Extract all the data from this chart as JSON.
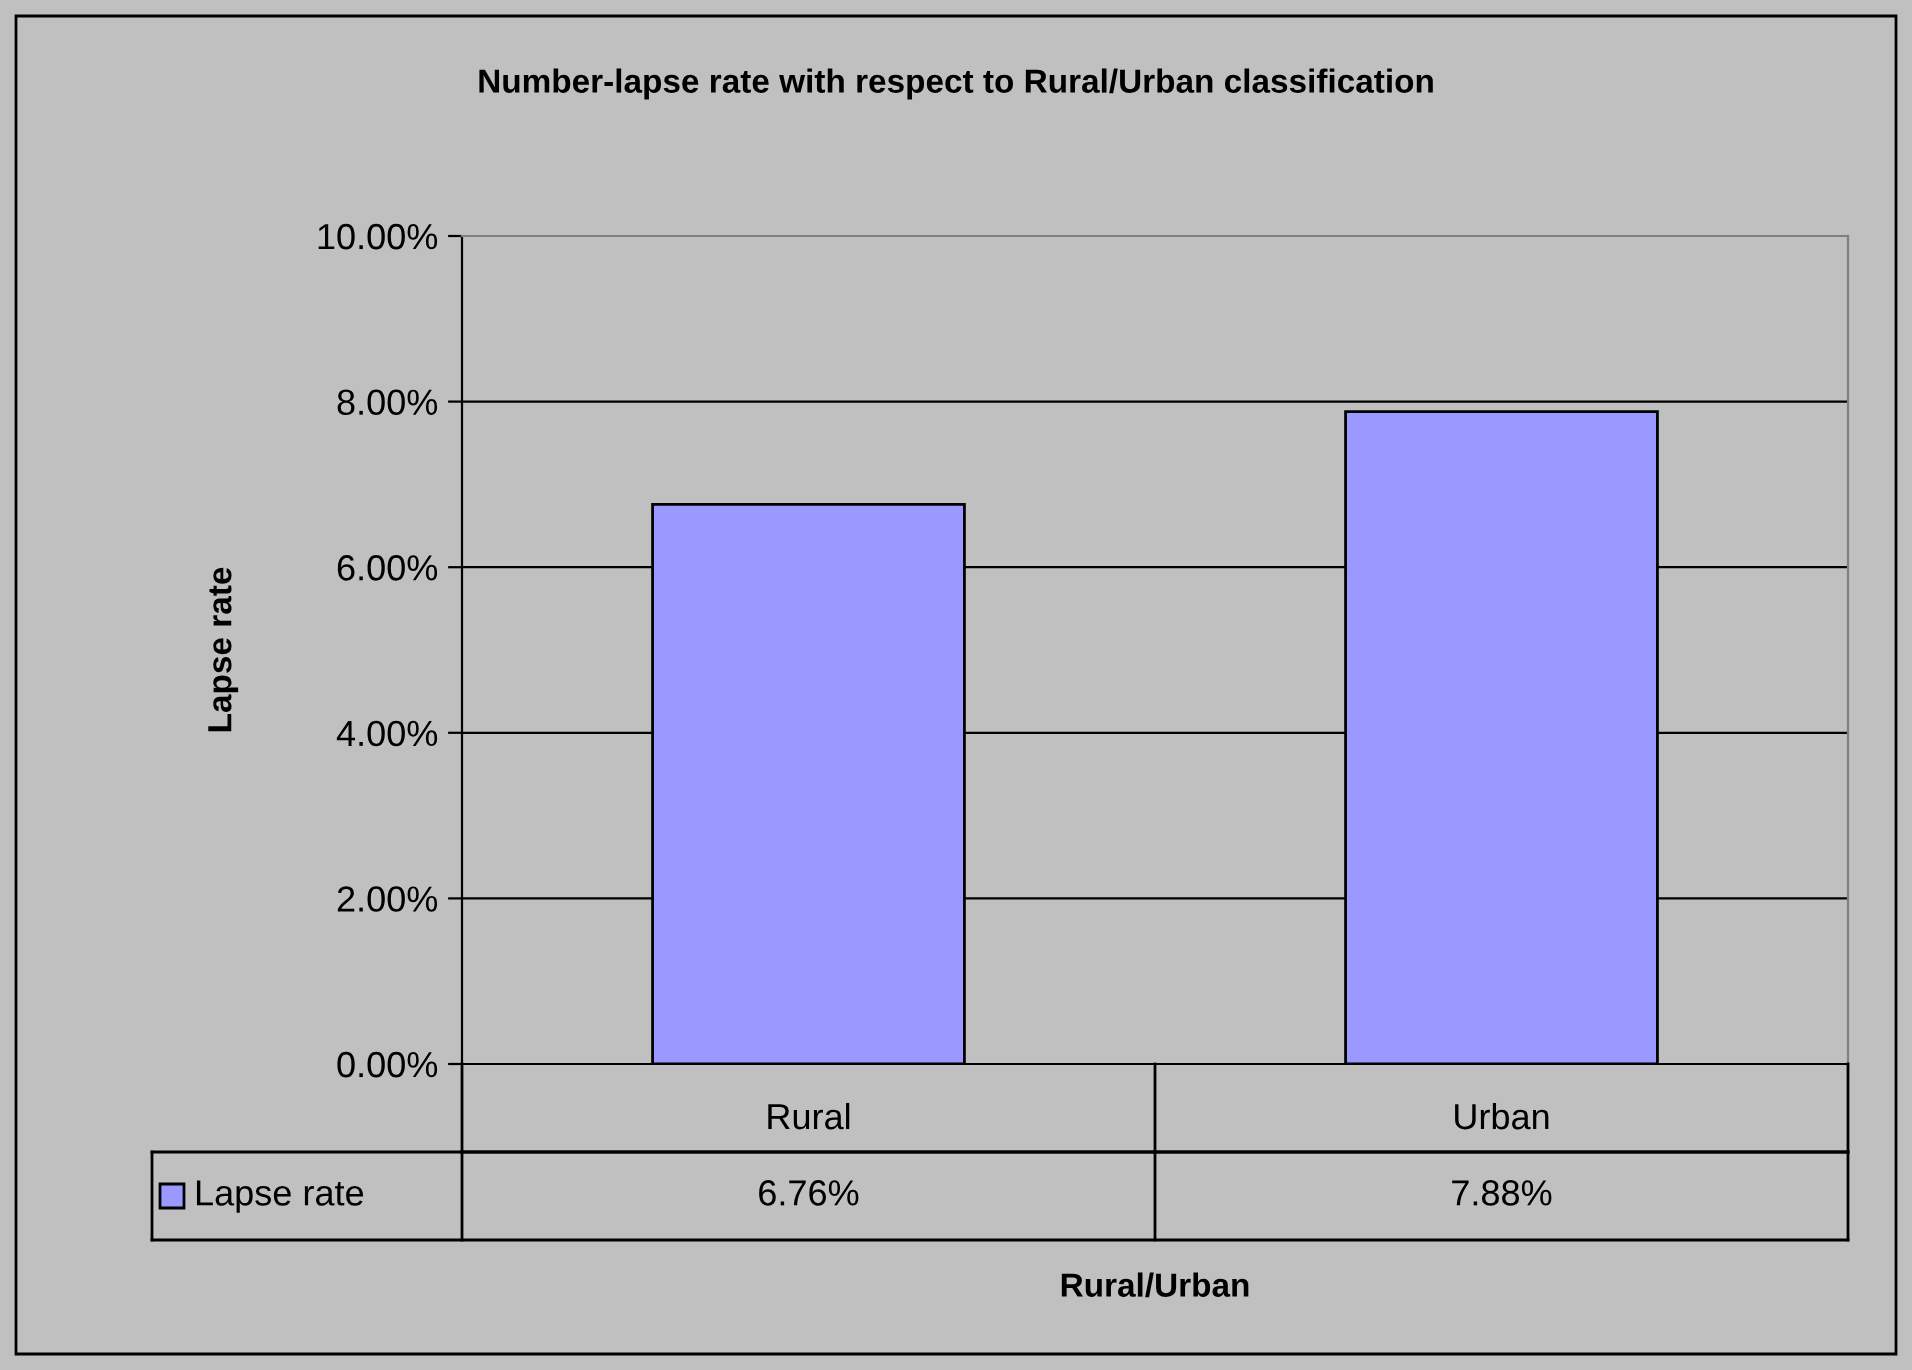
{
  "chart_data": {
    "type": "bar",
    "title": "Number-lapse rate with respect to Rural/Urban classification",
    "xlabel": "Rural/Urban",
    "ylabel": "Lapse rate",
    "categories": [
      "Rural",
      "Urban"
    ],
    "series": [
      {
        "name": "Lapse rate",
        "color": "#9999ff",
        "values": [
          6.76,
          7.88
        ],
        "value_labels": [
          "6.76%",
          "7.88%"
        ]
      }
    ],
    "ylim": [
      0,
      10
    ],
    "yticks": [
      {
        "value": 0,
        "label": "0.00%"
      },
      {
        "value": 2,
        "label": "2.00%"
      },
      {
        "value": 4,
        "label": "4.00%"
      },
      {
        "value": 6,
        "label": "6.00%"
      },
      {
        "value": 8,
        "label": "8.00%"
      },
      {
        "value": 10,
        "label": "10.00%"
      }
    ],
    "grid": "y",
    "legend": "bottom"
  }
}
